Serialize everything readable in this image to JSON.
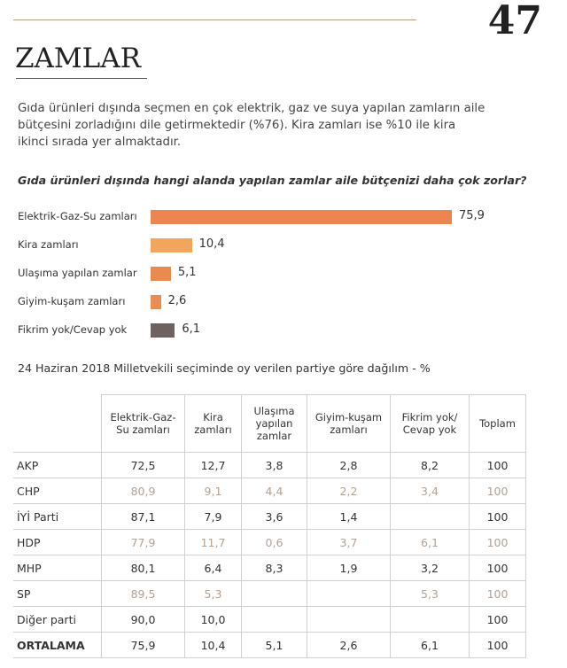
{
  "header": {
    "page_number": "47",
    "title": "ZAMLAR"
  },
  "intro_lines": [
    "Gıda ürünleri dışında seçmen en çok elektrik, gaz ve suya yapılan zamların aile",
    "bütçesini zorladığını dile getirmektedir (%76). Kira zamları ise %10 ile kira",
    "ikinci sırada yer almaktadır."
  ],
  "chart_data": {
    "type": "hbar",
    "title": "Gıda ürünleri dışında hangi alanda yapılan zamlar aile bütçenizi daha çok zorlar?",
    "categories": [
      "Elektrik-Gaz-Su zamları",
      "Kira zamları",
      "Ulaşıma yapılan zamlar",
      "Giyim-kuşam zamları",
      "Fikrim yok/Cevap yok"
    ],
    "values": [
      75.9,
      10.4,
      5.1,
      2.6,
      6.1
    ],
    "value_labels": [
      "75,9",
      "10,4",
      "5,1",
      "2,6",
      "6,1"
    ],
    "colors": [
      "#ec8550",
      "#f2a55c",
      "#ea8a4e",
      "#eb8d52",
      "#6e625e"
    ]
  },
  "table": {
    "title": "24 Haziran 2018 Milletvekili seçiminde oy verilen partiye göre dağılım - %",
    "columns": [
      null,
      "Elektrik-Gaz-Su zamları",
      "Kira zamları",
      "Ulaşıma yapılan zamlar",
      "Giyim-kuşam zamları",
      "Fikrim yok/ Cevap yok",
      "Toplam"
    ],
    "muted_color": "#b3a193",
    "rows": [
      {
        "cells": [
          "AKP",
          "72,5",
          "12,7",
          "3,8",
          "2,8",
          "8,2",
          "100"
        ]
      },
      {
        "cells": [
          "CHP",
          "80,9",
          "9,1",
          "4,4",
          "2,2",
          "3,4",
          "100"
        ],
        "muted": true
      },
      {
        "cells": [
          "İYİ Parti",
          "87,1",
          "7,9",
          "3,6",
          "1,4",
          null,
          "100"
        ]
      },
      {
        "cells": [
          "HDP",
          "77,9",
          "11,7",
          "0,6",
          "3,7",
          "6,1",
          "100"
        ],
        "muted": true
      },
      {
        "cells": [
          "MHP",
          "80,1",
          "6,4",
          "8,3",
          "1,9",
          "3,2",
          "100"
        ]
      },
      {
        "cells": [
          "SP",
          "89,5",
          "5,3",
          null,
          null,
          "5,3",
          "100"
        ],
        "muted": true
      },
      {
        "cells": [
          "Diğer parti",
          "90,0",
          "10,0",
          null,
          null,
          null,
          "100"
        ]
      },
      {
        "cells": [
          "ORTALAMA",
          "75,9",
          "10,4",
          "5,1",
          "2,6",
          "6,1",
          "100"
        ],
        "bold": true
      }
    ]
  }
}
